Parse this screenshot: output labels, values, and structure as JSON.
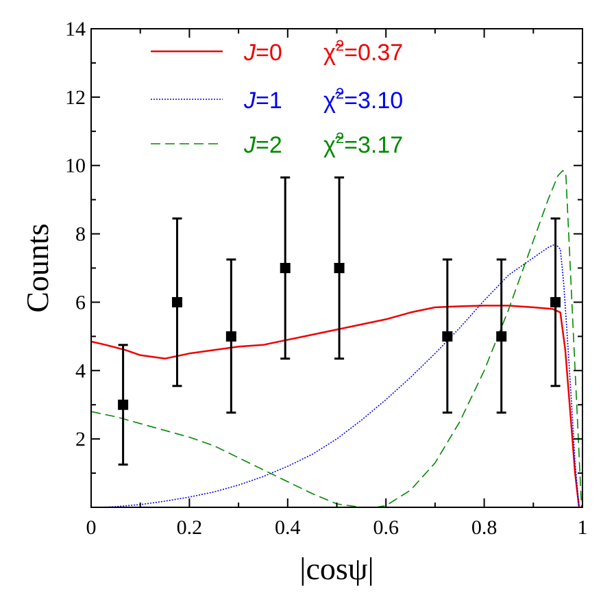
{
  "chart_data": {
    "type": "scatter",
    "xlabel": "|cosψ|",
    "ylabel": "Counts",
    "xlim": [
      0,
      1
    ],
    "ylim": [
      0,
      14
    ],
    "x_ticks": [
      0,
      0.2,
      0.4,
      0.6,
      0.8,
      1
    ],
    "x_tick_labels": [
      "0",
      "0.2",
      "0.4",
      "0.6",
      "0.8",
      "1"
    ],
    "y_ticks": [
      2,
      4,
      6,
      8,
      10,
      12,
      14
    ],
    "y_tick_labels": [
      "2",
      "4",
      "6",
      "8",
      "10",
      "12",
      "14"
    ],
    "data_points": {
      "x": [
        0.065,
        0.175,
        0.285,
        0.395,
        0.505,
        0.725,
        0.835,
        0.945
      ],
      "y": [
        3,
        6,
        5,
        7,
        7,
        5,
        5,
        6
      ],
      "err_low": [
        1.25,
        3.55,
        2.77,
        4.35,
        4.35,
        2.77,
        2.77,
        3.55
      ],
      "err_high": [
        4.75,
        8.45,
        7.25,
        9.65,
        9.65,
        7.25,
        7.25,
        8.45
      ]
    },
    "series": [
      {
        "name": "J=0",
        "j_label": "J",
        "value_label": "=0",
        "chi_symbol": "χ̃",
        "chi_exp": "2",
        "chi_value": "=0.37",
        "color": "#ee0000",
        "style": "solid",
        "x": [
          0,
          0.03,
          0.07,
          0.1,
          0.15,
          0.2,
          0.25,
          0.3,
          0.35,
          0.4,
          0.45,
          0.5,
          0.55,
          0.6,
          0.65,
          0.7,
          0.75,
          0.8,
          0.85,
          0.9,
          0.94,
          0.955,
          0.965,
          0.975,
          0.985,
          0.993
        ],
        "y": [
          4.85,
          4.75,
          4.6,
          4.45,
          4.35,
          4.5,
          4.6,
          4.7,
          4.75,
          4.9,
          5.05,
          5.2,
          5.35,
          5.5,
          5.7,
          5.85,
          5.88,
          5.9,
          5.9,
          5.85,
          5.8,
          5.7,
          4.6,
          2.8,
          1.0,
          0.0
        ]
      },
      {
        "name": "J=1",
        "j_label": "J",
        "value_label": "=1",
        "chi_symbol": "χ̃",
        "chi_exp": "2",
        "chi_value": "=3.10",
        "color": "#0000ee",
        "style": "dotted",
        "x": [
          0.02,
          0.05,
          0.1,
          0.15,
          0.2,
          0.25,
          0.3,
          0.35,
          0.4,
          0.45,
          0.5,
          0.55,
          0.6,
          0.65,
          0.7,
          0.75,
          0.8,
          0.85,
          0.9,
          0.93,
          0.945,
          0.955,
          0.962,
          0.97,
          0.978,
          0.985,
          0.993
        ],
        "y": [
          0.0,
          0.02,
          0.08,
          0.18,
          0.3,
          0.45,
          0.65,
          0.9,
          1.2,
          1.55,
          2.0,
          2.55,
          3.15,
          3.8,
          4.5,
          5.25,
          6.05,
          6.8,
          7.3,
          7.6,
          7.7,
          7.55,
          6.5,
          4.8,
          3.0,
          1.3,
          0.0
        ]
      },
      {
        "name": "J=2",
        "j_label": "J",
        "value_label": "=2",
        "chi_symbol": "χ̃",
        "chi_exp": "2",
        "chi_value": "=3.17",
        "color": "#008800",
        "style": "dashed",
        "x": [
          0,
          0.05,
          0.1,
          0.15,
          0.2,
          0.25,
          0.3,
          0.35,
          0.4,
          0.45,
          0.5,
          0.55,
          0.58,
          0.6,
          0.65,
          0.7,
          0.75,
          0.8,
          0.85,
          0.9,
          0.93,
          0.95,
          0.96,
          0.966,
          0.972,
          0.98,
          0.99,
          0.998
        ],
        "y": [
          2.8,
          2.65,
          2.45,
          2.25,
          2.05,
          1.8,
          1.45,
          1.1,
          0.75,
          0.4,
          0.1,
          0.0,
          0.0,
          0.05,
          0.5,
          1.3,
          2.5,
          4.0,
          5.8,
          7.8,
          9.0,
          9.7,
          9.85,
          9.8,
          8.0,
          5.5,
          2.5,
          0.0
        ]
      }
    ]
  }
}
